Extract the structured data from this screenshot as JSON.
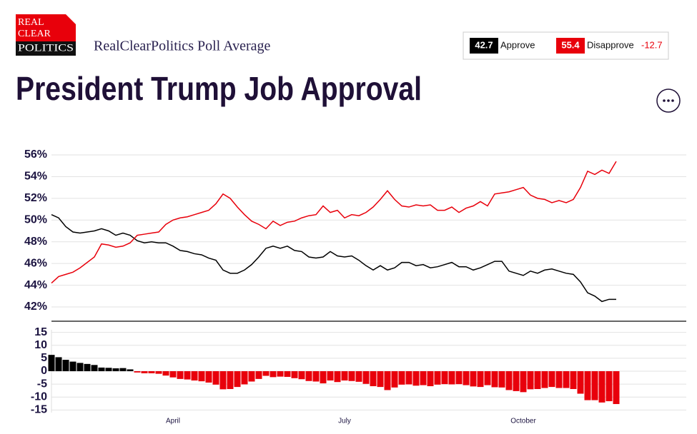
{
  "header": {
    "logo": [
      "REAL",
      "CLEAR",
      "POLITICS"
    ],
    "source": "RealClearPolitics Poll Average",
    "title": "President Trump Job Approval"
  },
  "chart_data": [
    {
      "type": "line",
      "series": [
        {
          "name": "Approve",
          "color": "#000000",
          "values": [
            50.5,
            50.2,
            49.4,
            48.9,
            48.8,
            48.9,
            49.0,
            49.2,
            49.0,
            48.6,
            48.8,
            48.6,
            48.1,
            47.9,
            48.0,
            47.9,
            47.9,
            47.6,
            47.2,
            47.1,
            46.9,
            46.8,
            46.5,
            46.3,
            45.4,
            45.1,
            45.1,
            45.4,
            45.9,
            46.6,
            47.4,
            47.6,
            47.4,
            47.6,
            47.2,
            47.1,
            46.6,
            46.5,
            46.6,
            47.1,
            46.7,
            46.6,
            46.7,
            46.3,
            45.8,
            45.4,
            45.8,
            45.4,
            45.6,
            46.1,
            46.1,
            45.8,
            45.9,
            45.6,
            45.7,
            45.9,
            46.1,
            45.7,
            45.7,
            45.4,
            45.6,
            45.9,
            46.2,
            46.2,
            45.3,
            45.1,
            44.9,
            45.3,
            45.1,
            45.4,
            45.5,
            45.3,
            45.1,
            45.0,
            44.3,
            43.3,
            43.0,
            42.5,
            42.7,
            42.7
          ]
        },
        {
          "name": "Disapprove",
          "color": "#e8000b",
          "values": [
            44.2,
            44.8,
            45.0,
            45.2,
            45.6,
            46.1,
            46.6,
            47.8,
            47.7,
            47.5,
            47.6,
            47.9,
            48.6,
            48.7,
            48.8,
            48.9,
            49.6,
            50.0,
            50.2,
            50.3,
            50.5,
            50.7,
            50.9,
            51.5,
            52.4,
            52.0,
            51.2,
            50.5,
            49.9,
            49.6,
            49.2,
            49.9,
            49.5,
            49.8,
            49.9,
            50.2,
            50.4,
            50.5,
            51.3,
            50.7,
            50.9,
            50.2,
            50.5,
            50.4,
            50.7,
            51.2,
            51.9,
            52.7,
            51.9,
            51.3,
            51.2,
            51.4,
            51.3,
            51.4,
            50.9,
            50.9,
            51.2,
            50.7,
            51.1,
            51.3,
            51.7,
            51.3,
            52.4,
            52.5,
            52.6,
            52.8,
            53.0,
            52.3,
            52.0,
            51.9,
            51.6,
            51.8,
            51.6,
            51.9,
            53.0,
            54.5,
            54.2,
            54.6,
            54.3,
            55.4
          ]
        }
      ],
      "ylim": [
        41,
        57
      ],
      "yticks": [
        {
          "value": 56,
          "label": "56%"
        },
        {
          "value": 54,
          "label": "54%"
        },
        {
          "value": 52,
          "label": "52%"
        },
        {
          "value": 50,
          "label": "50%"
        },
        {
          "value": 48,
          "label": "48%"
        },
        {
          "value": 46,
          "label": "46%"
        },
        {
          "value": 44,
          "label": "44%"
        },
        {
          "value": 42,
          "label": "42%"
        }
      ],
      "grid": true
    },
    {
      "type": "bar",
      "categories": [
        null,
        null,
        null,
        null,
        null,
        null,
        null,
        null,
        null,
        null,
        null,
        null,
        null,
        null,
        null,
        null,
        null,
        "April",
        null,
        null,
        null,
        null,
        null,
        null,
        null,
        null,
        null,
        null,
        null,
        null,
        null,
        null,
        null,
        null,
        null,
        null,
        null,
        null,
        null,
        null,
        null,
        "July",
        null,
        null,
        null,
        null,
        null,
        null,
        null,
        null,
        null,
        null,
        null,
        null,
        null,
        null,
        null,
        null,
        null,
        null,
        null,
        null,
        null,
        null,
        null,
        null,
        "October",
        null,
        null,
        null,
        null,
        null,
        null,
        null,
        null,
        null,
        null,
        null,
        null,
        null
      ],
      "values": [
        6.3,
        5.4,
        4.4,
        3.7,
        3.2,
        2.8,
        2.4,
        1.4,
        1.3,
        1.1,
        1.2,
        0.7,
        -0.5,
        -0.8,
        -0.8,
        -1.0,
        -1.7,
        -2.4,
        -3.0,
        -3.2,
        -3.6,
        -3.9,
        -4.4,
        -5.2,
        -7.0,
        -6.9,
        -6.1,
        -5.1,
        -4.0,
        -3.0,
        -1.8,
        -2.3,
        -2.1,
        -2.2,
        -2.7,
        -3.1,
        -3.8,
        -4.0,
        -4.7,
        -3.6,
        -4.2,
        -3.6,
        -3.8,
        -4.1,
        -4.9,
        -5.8,
        -6.1,
        -7.3,
        -6.3,
        -5.2,
        -5.1,
        -5.6,
        -5.4,
        -5.8,
        -5.2,
        -5.0,
        -5.1,
        -5.0,
        -5.4,
        -5.9,
        -6.1,
        -5.4,
        -6.2,
        -6.3,
        -7.3,
        -7.7,
        -8.1,
        -7.0,
        -6.9,
        -6.5,
        -6.1,
        -6.5,
        -6.5,
        -6.9,
        -8.7,
        -11.2,
        -11.2,
        -12.1,
        -11.6,
        -12.7
      ],
      "positive_color": "#000000",
      "negative_color": "#e8000b",
      "ylim": [
        -16,
        16
      ],
      "yticks": [
        15,
        10,
        5,
        0,
        -5,
        -10,
        -15
      ],
      "grid": true
    }
  ]
}
